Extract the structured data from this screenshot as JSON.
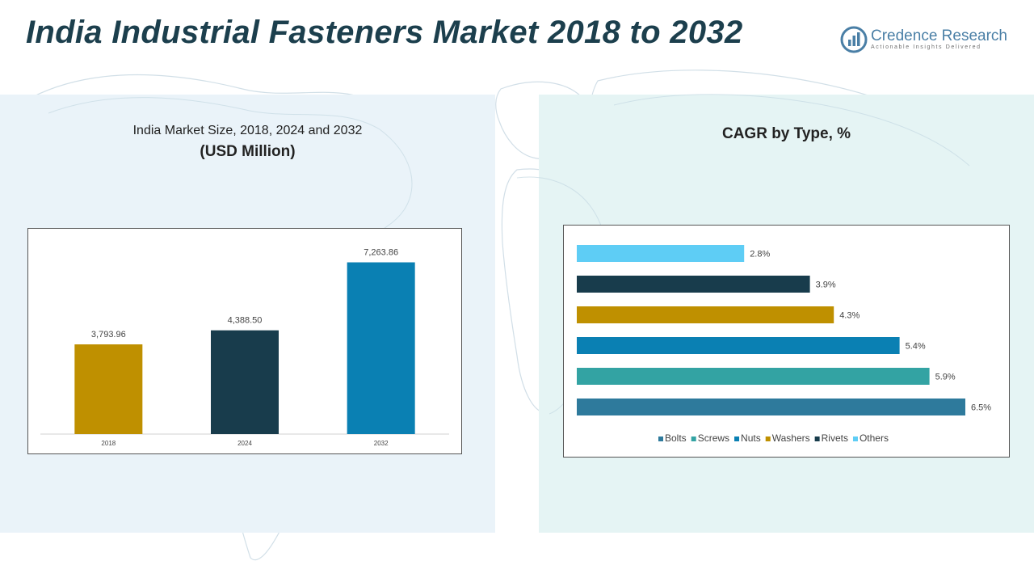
{
  "header": {
    "title": "India Industrial Fasteners Market 2018 to 2032",
    "logo_name": "Credence Research",
    "logo_tagline": "Actionable Insights Delivered"
  },
  "left_panel": {
    "subtitle_line1": "India Market Size, 2018, 2024 and 2032",
    "subtitle_line2": "(USD Million)"
  },
  "right_panel": {
    "title": "CAGR by Type, %"
  },
  "colors": {
    "title": "#1c3f4d",
    "bolts": "#2e7a9c",
    "screws": "#33a3a3",
    "nuts": "#0a80b3",
    "washers": "#bf9000",
    "rivets": "#183c4c",
    "others": "#5ecdf5"
  },
  "chart_data": [
    {
      "type": "bar",
      "categories": [
        "2018",
        "2024",
        "2032"
      ],
      "values": [
        3793.96,
        4388.5,
        7263.86
      ],
      "value_labels": [
        "3,793.96",
        "4,388.50",
        "7,263.86"
      ],
      "bar_colors": [
        "#bf9000",
        "#183c4c",
        "#0a80b3"
      ],
      "title": "India Market Size, 2018, 2024 and 2032",
      "ylabel": "(USD Million)",
      "ylim": [
        0,
        8000
      ],
      "grid": false
    },
    {
      "type": "bar",
      "orientation": "horizontal",
      "categories": [
        "Others",
        "Rivets",
        "Washers",
        "Nuts",
        "Screws",
        "Bolts"
      ],
      "values": [
        2.8,
        3.9,
        4.3,
        5.4,
        5.9,
        6.5
      ],
      "value_labels": [
        "2.8%",
        "3.9%",
        "4.3%",
        "5.4%",
        "5.9%",
        "6.5%"
      ],
      "bar_colors": [
        "#5ecdf5",
        "#183c4c",
        "#bf9000",
        "#0a80b3",
        "#33a3a3",
        "#2e7a9c"
      ],
      "title": "CAGR by Type, %",
      "legend": [
        "Bolts",
        "Screws",
        "Nuts",
        "Washers",
        "Rivets",
        "Others"
      ],
      "legend_colors": [
        "#2e7a9c",
        "#33a3a3",
        "#0a80b3",
        "#bf9000",
        "#183c4c",
        "#5ecdf5"
      ],
      "legend_position": "bottom",
      "xlim": [
        0,
        7
      ],
      "grid": false
    }
  ]
}
